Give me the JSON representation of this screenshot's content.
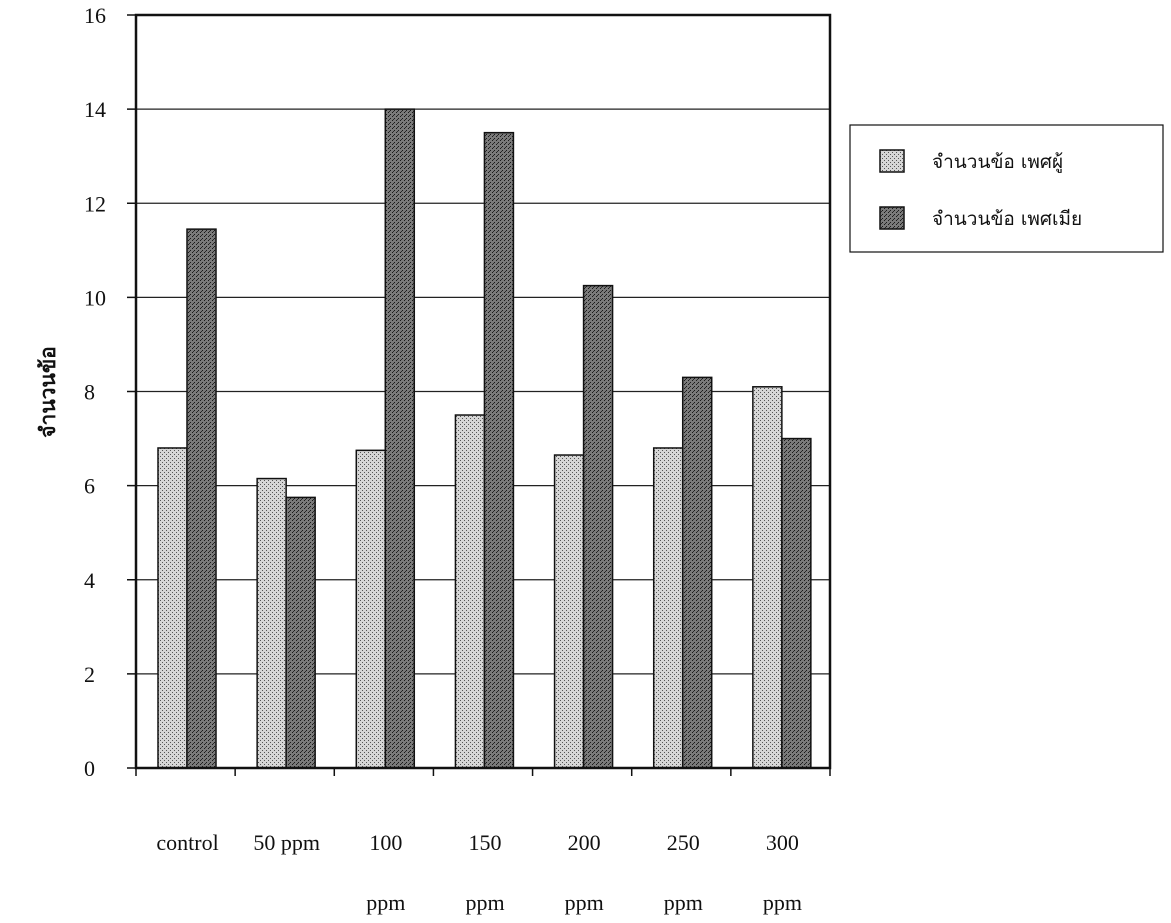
{
  "chart_data": {
    "type": "bar",
    "title": "",
    "xlabel": "",
    "ylabel": "จำนวนข้อ",
    "ylim": [
      0,
      16
    ],
    "yticks": [
      0,
      2,
      4,
      6,
      8,
      10,
      12,
      14,
      16
    ],
    "grid": true,
    "legend_position": "right",
    "categories": [
      [
        "control",
        ""
      ],
      [
        "50 ppm",
        ""
      ],
      [
        "100",
        "ppm"
      ],
      [
        "150",
        "ppm"
      ],
      [
        "200",
        "ppm"
      ],
      [
        "250",
        "ppm"
      ],
      [
        "300",
        "ppm"
      ]
    ],
    "series": [
      {
        "name": "จำนวนข้อ เพศผู้",
        "color": "#bdbdbd",
        "pattern": "light-dots",
        "values": [
          6.8,
          6.15,
          6.75,
          7.5,
          6.65,
          6.8,
          8.1
        ]
      },
      {
        "name": "จำนวนข้อ เพศเมีย",
        "color": "#6e6e6e",
        "pattern": "dark-dots",
        "values": [
          11.45,
          5.75,
          14.0,
          13.5,
          10.25,
          8.3,
          7.0
        ]
      }
    ]
  }
}
